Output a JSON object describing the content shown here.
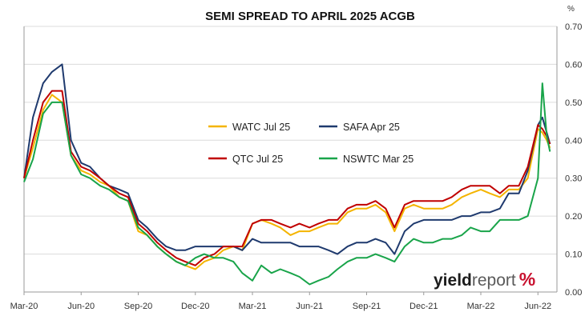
{
  "chart_data": {
    "type": "line",
    "title": "SEMI SPREAD TO APRIL 2025 ACGB",
    "y_unit": "%",
    "ylim": [
      0,
      0.7
    ],
    "y_ticks": [
      "0.00",
      "0.10",
      "0.20",
      "0.30",
      "0.40",
      "0.50",
      "0.60",
      "0.70"
    ],
    "y_axis_side": "right",
    "xlim": [
      "2020-03",
      "2022-07"
    ],
    "x_ticks": [
      {
        "label": "Mar-20",
        "date": "2020-03"
      },
      {
        "label": "Jun-20",
        "date": "2020-06"
      },
      {
        "label": "Sep-20",
        "date": "2020-09"
      },
      {
        "label": "Dec-20",
        "date": "2020-12"
      },
      {
        "label": "Mar-21",
        "date": "2021-03"
      },
      {
        "label": "Jun-21",
        "date": "2021-06"
      },
      {
        "label": "Sep-21",
        "date": "2021-09"
      },
      {
        "label": "Dec-21",
        "date": "2021-12"
      },
      {
        "label": "Mar-22",
        "date": "2022-03"
      },
      {
        "label": "Jun-22",
        "date": "2022-06"
      }
    ],
    "grid": "horizontal",
    "legend": "center",
    "series": [
      {
        "name": "WATC Jul 25",
        "color": "#f4b400",
        "points": [
          [
            "2020-03",
            0.3
          ],
          [
            "2020-03-15",
            0.38
          ],
          [
            "2020-04",
            0.48
          ],
          [
            "2020-04-15",
            0.52
          ],
          [
            "2020-05",
            0.5
          ],
          [
            "2020-05-15",
            0.36
          ],
          [
            "2020-06",
            0.32
          ],
          [
            "2020-06-15",
            0.31
          ],
          [
            "2020-07",
            0.29
          ],
          [
            "2020-07-15",
            0.28
          ],
          [
            "2020-08",
            0.25
          ],
          [
            "2020-08-15",
            0.24
          ],
          [
            "2020-09",
            0.16
          ],
          [
            "2020-09-15",
            0.15
          ],
          [
            "2020-10",
            0.12
          ],
          [
            "2020-10-15",
            0.1
          ],
          [
            "2020-11",
            0.08
          ],
          [
            "2020-11-15",
            0.07
          ],
          [
            "2020-12",
            0.06
          ],
          [
            "2020-12-15",
            0.08
          ],
          [
            "2021-01",
            0.09
          ],
          [
            "2021-01-15",
            0.11
          ],
          [
            "2021-02",
            0.12
          ],
          [
            "2021-02-15",
            0.11
          ],
          [
            "2021-03",
            0.18
          ],
          [
            "2021-03-15",
            0.19
          ],
          [
            "2021-04",
            0.18
          ],
          [
            "2021-04-15",
            0.17
          ],
          [
            "2021-05",
            0.15
          ],
          [
            "2021-05-15",
            0.16
          ],
          [
            "2021-06",
            0.16
          ],
          [
            "2021-06-15",
            0.17
          ],
          [
            "2021-07",
            0.18
          ],
          [
            "2021-07-15",
            0.18
          ],
          [
            "2021-08",
            0.21
          ],
          [
            "2021-08-15",
            0.22
          ],
          [
            "2021-09",
            0.22
          ],
          [
            "2021-09-15",
            0.23
          ],
          [
            "2021-10",
            0.21
          ],
          [
            "2021-10-15",
            0.16
          ],
          [
            "2021-11",
            0.22
          ],
          [
            "2021-11-15",
            0.23
          ],
          [
            "2021-12",
            0.22
          ],
          [
            "2021-12-15",
            0.22
          ],
          [
            "2022-01",
            0.22
          ],
          [
            "2022-01-15",
            0.23
          ],
          [
            "2022-02",
            0.25
          ],
          [
            "2022-02-15",
            0.26
          ],
          [
            "2022-03",
            0.27
          ],
          [
            "2022-03-15",
            0.26
          ],
          [
            "2022-04",
            0.25
          ],
          [
            "2022-04-15",
            0.27
          ],
          [
            "2022-05",
            0.27
          ],
          [
            "2022-05-15",
            0.3
          ],
          [
            "2022-06",
            0.43
          ],
          [
            "2022-06-08",
            0.42
          ],
          [
            "2022-06-15",
            0.4
          ],
          [
            "2022-06-20",
            0.38
          ]
        ]
      },
      {
        "name": "SAFA Apr 25",
        "color": "#1f3a6e",
        "points": [
          [
            "2020-03",
            0.3
          ],
          [
            "2020-03-15",
            0.46
          ],
          [
            "2020-04",
            0.55
          ],
          [
            "2020-04-15",
            0.58
          ],
          [
            "2020-05",
            0.6
          ],
          [
            "2020-05-15",
            0.4
          ],
          [
            "2020-06",
            0.34
          ],
          [
            "2020-06-15",
            0.33
          ],
          [
            "2020-07",
            0.3
          ],
          [
            "2020-07-15",
            0.28
          ],
          [
            "2020-08",
            0.27
          ],
          [
            "2020-08-15",
            0.26
          ],
          [
            "2020-09",
            0.19
          ],
          [
            "2020-09-15",
            0.17
          ],
          [
            "2020-10",
            0.14
          ],
          [
            "2020-10-15",
            0.12
          ],
          [
            "2020-11",
            0.11
          ],
          [
            "2020-11-15",
            0.11
          ],
          [
            "2020-12",
            0.12
          ],
          [
            "2020-12-15",
            0.12
          ],
          [
            "2021-01",
            0.12
          ],
          [
            "2021-01-15",
            0.12
          ],
          [
            "2021-02",
            0.12
          ],
          [
            "2021-02-15",
            0.11
          ],
          [
            "2021-03",
            0.14
          ],
          [
            "2021-03-15",
            0.13
          ],
          [
            "2021-04",
            0.13
          ],
          [
            "2021-04-15",
            0.13
          ],
          [
            "2021-05",
            0.13
          ],
          [
            "2021-05-15",
            0.12
          ],
          [
            "2021-06",
            0.12
          ],
          [
            "2021-06-15",
            0.12
          ],
          [
            "2021-07",
            0.11
          ],
          [
            "2021-07-15",
            0.1
          ],
          [
            "2021-08",
            0.12
          ],
          [
            "2021-08-15",
            0.13
          ],
          [
            "2021-09",
            0.13
          ],
          [
            "2021-09-15",
            0.14
          ],
          [
            "2021-10",
            0.13
          ],
          [
            "2021-10-15",
            0.1
          ],
          [
            "2021-11",
            0.16
          ],
          [
            "2021-11-15",
            0.18
          ],
          [
            "2021-12",
            0.19
          ],
          [
            "2021-12-15",
            0.19
          ],
          [
            "2022-01",
            0.19
          ],
          [
            "2022-01-15",
            0.19
          ],
          [
            "2022-02",
            0.2
          ],
          [
            "2022-02-15",
            0.2
          ],
          [
            "2022-03",
            0.21
          ],
          [
            "2022-03-15",
            0.21
          ],
          [
            "2022-04",
            0.22
          ],
          [
            "2022-04-15",
            0.26
          ],
          [
            "2022-05",
            0.26
          ],
          [
            "2022-05-15",
            0.32
          ],
          [
            "2022-06",
            0.44
          ],
          [
            "2022-06-08",
            0.46
          ],
          [
            "2022-06-15",
            0.42
          ],
          [
            "2022-06-20",
            0.39
          ]
        ]
      },
      {
        "name": "QTC Jul 25",
        "color": "#c00000",
        "points": [
          [
            "2020-03",
            0.3
          ],
          [
            "2020-03-15",
            0.4
          ],
          [
            "2020-04",
            0.5
          ],
          [
            "2020-04-15",
            0.53
          ],
          [
            "2020-05",
            0.53
          ],
          [
            "2020-05-15",
            0.37
          ],
          [
            "2020-06",
            0.33
          ],
          [
            "2020-06-15",
            0.32
          ],
          [
            "2020-07",
            0.3
          ],
          [
            "2020-07-15",
            0.28
          ],
          [
            "2020-08",
            0.26
          ],
          [
            "2020-08-15",
            0.25
          ],
          [
            "2020-09",
            0.18
          ],
          [
            "2020-09-15",
            0.16
          ],
          [
            "2020-10",
            0.13
          ],
          [
            "2020-10-15",
            0.11
          ],
          [
            "2020-11",
            0.09
          ],
          [
            "2020-11-15",
            0.08
          ],
          [
            "2020-12",
            0.07
          ],
          [
            "2020-12-15",
            0.09
          ],
          [
            "2021-01",
            0.1
          ],
          [
            "2021-01-15",
            0.12
          ],
          [
            "2021-02",
            0.12
          ],
          [
            "2021-02-15",
            0.12
          ],
          [
            "2021-03",
            0.18
          ],
          [
            "2021-03-15",
            0.19
          ],
          [
            "2021-04",
            0.19
          ],
          [
            "2021-04-15",
            0.18
          ],
          [
            "2021-05",
            0.17
          ],
          [
            "2021-05-15",
            0.18
          ],
          [
            "2021-06",
            0.17
          ],
          [
            "2021-06-15",
            0.18
          ],
          [
            "2021-07",
            0.19
          ],
          [
            "2021-07-15",
            0.19
          ],
          [
            "2021-08",
            0.22
          ],
          [
            "2021-08-15",
            0.23
          ],
          [
            "2021-09",
            0.23
          ],
          [
            "2021-09-15",
            0.24
          ],
          [
            "2021-10",
            0.22
          ],
          [
            "2021-10-15",
            0.17
          ],
          [
            "2021-11",
            0.23
          ],
          [
            "2021-11-15",
            0.24
          ],
          [
            "2021-12",
            0.24
          ],
          [
            "2021-12-15",
            0.24
          ],
          [
            "2022-01",
            0.24
          ],
          [
            "2022-01-15",
            0.25
          ],
          [
            "2022-02",
            0.27
          ],
          [
            "2022-02-15",
            0.28
          ],
          [
            "2022-03",
            0.28
          ],
          [
            "2022-03-15",
            0.28
          ],
          [
            "2022-04",
            0.26
          ],
          [
            "2022-04-15",
            0.28
          ],
          [
            "2022-05",
            0.28
          ],
          [
            "2022-05-15",
            0.33
          ],
          [
            "2022-06",
            0.44
          ],
          [
            "2022-06-08",
            0.43
          ],
          [
            "2022-06-15",
            0.41
          ],
          [
            "2022-06-20",
            0.39
          ]
        ]
      },
      {
        "name": "NSWTC Mar 25",
        "color": "#19a44a",
        "points": [
          [
            "2020-03",
            0.29
          ],
          [
            "2020-03-15",
            0.35
          ],
          [
            "2020-04",
            0.47
          ],
          [
            "2020-04-15",
            0.5
          ],
          [
            "2020-05",
            0.5
          ],
          [
            "2020-05-15",
            0.36
          ],
          [
            "2020-06",
            0.31
          ],
          [
            "2020-06-15",
            0.3
          ],
          [
            "2020-07",
            0.28
          ],
          [
            "2020-07-15",
            0.27
          ],
          [
            "2020-08",
            0.25
          ],
          [
            "2020-08-15",
            0.24
          ],
          [
            "2020-09",
            0.17
          ],
          [
            "2020-09-15",
            0.15
          ],
          [
            "2020-10",
            0.12
          ],
          [
            "2020-10-15",
            0.1
          ],
          [
            "2020-11",
            0.08
          ],
          [
            "2020-11-15",
            0.07
          ],
          [
            "2020-12",
            0.09
          ],
          [
            "2020-12-15",
            0.1
          ],
          [
            "2021-01",
            0.09
          ],
          [
            "2021-01-15",
            0.09
          ],
          [
            "2021-02",
            0.08
          ],
          [
            "2021-02-15",
            0.05
          ],
          [
            "2021-03",
            0.03
          ],
          [
            "2021-03-15",
            0.07
          ],
          [
            "2021-04",
            0.05
          ],
          [
            "2021-04-15",
            0.06
          ],
          [
            "2021-05",
            0.05
          ],
          [
            "2021-05-15",
            0.04
          ],
          [
            "2021-06",
            0.02
          ],
          [
            "2021-06-15",
            0.03
          ],
          [
            "2021-07",
            0.04
          ],
          [
            "2021-07-15",
            0.06
          ],
          [
            "2021-08",
            0.08
          ],
          [
            "2021-08-15",
            0.09
          ],
          [
            "2021-09",
            0.09
          ],
          [
            "2021-09-15",
            0.1
          ],
          [
            "2021-10",
            0.09
          ],
          [
            "2021-10-15",
            0.08
          ],
          [
            "2021-11",
            0.12
          ],
          [
            "2021-11-15",
            0.14
          ],
          [
            "2021-12",
            0.13
          ],
          [
            "2021-12-15",
            0.13
          ],
          [
            "2022-01",
            0.14
          ],
          [
            "2022-01-15",
            0.14
          ],
          [
            "2022-02",
            0.15
          ],
          [
            "2022-02-15",
            0.17
          ],
          [
            "2022-03",
            0.16
          ],
          [
            "2022-03-15",
            0.16
          ],
          [
            "2022-04",
            0.19
          ],
          [
            "2022-04-15",
            0.19
          ],
          [
            "2022-05",
            0.19
          ],
          [
            "2022-05-15",
            0.2
          ],
          [
            "2022-06",
            0.3
          ],
          [
            "2022-06-08",
            0.55
          ],
          [
            "2022-06-15",
            0.41
          ],
          [
            "2022-06-20",
            0.37
          ]
        ]
      }
    ]
  },
  "logo": {
    "part1": "yield",
    "part2": "report",
    "part3": "%"
  }
}
